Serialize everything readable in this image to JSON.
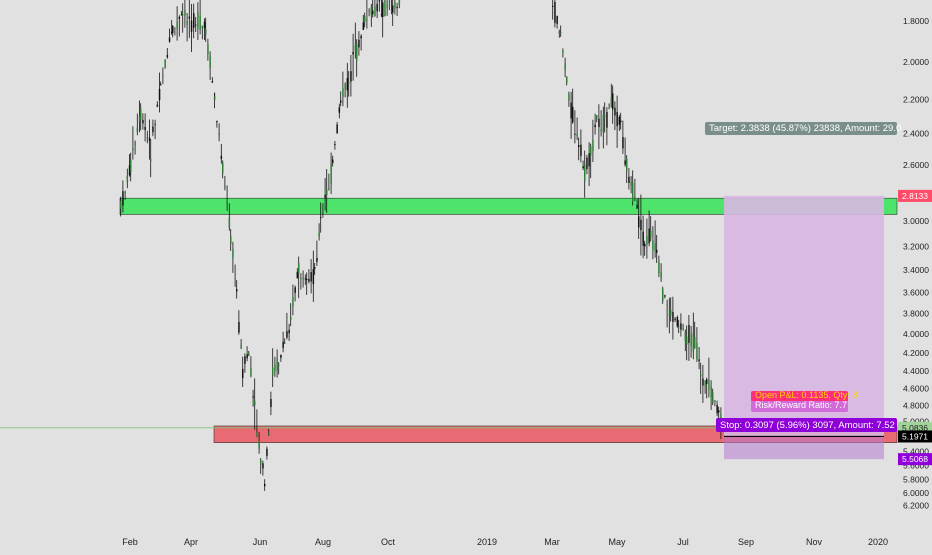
{
  "chart_data": {
    "type": "candlestick",
    "scale": "log",
    "y_axis_inverted": true,
    "grid": false,
    "x_tick_labels": [
      "Feb",
      "Apr",
      "Jun",
      "Aug",
      "Oct",
      "2019",
      "Mar",
      "May",
      "Jul",
      "Sep",
      "Nov",
      "2020"
    ],
    "y_tick_labels": [
      "1.8000",
      "2.0000",
      "2.2000",
      "2.4000",
      "2.6000",
      "2.8000",
      "3.0000",
      "3.2000",
      "3.4000",
      "3.6000",
      "3.8000",
      "4.0000",
      "4.2000",
      "4.4000",
      "4.6000",
      "4.8000",
      "5.0000",
      "5.2000",
      "5.4000",
      "5.6000",
      "5.8000",
      "6.0000",
      "6.2000"
    ],
    "y_range": [
      1.72,
      6.35
    ],
    "series_price_samples": [
      {
        "date": "Jan 2018",
        "price": 2.8
      },
      {
        "date": "Feb 2018",
        "price": 2.5
      },
      {
        "date": "Mar 2018",
        "price": 1.9
      },
      {
        "date": "Apr 2018",
        "price": 1.8
      },
      {
        "date": "Apr 2018 (late)",
        "price": 2.6
      },
      {
        "date": "May 2018",
        "price": 4.5
      },
      {
        "date": "early Jun 2018",
        "price": 5.9
      },
      {
        "date": "Jun 2018",
        "price": 4.2
      },
      {
        "date": "Jul 2018",
        "price": 3.5
      },
      {
        "date": "Aug 2018",
        "price": 2.7
      },
      {
        "date": "Sep 2018",
        "price": 2.0
      },
      {
        "date": "Oct 2018",
        "price": 1.8
      },
      {
        "date": "Mar 2019",
        "price": 2.1
      },
      {
        "date": "Apr 2019",
        "price": 2.4
      },
      {
        "date": "May 2019",
        "price": 2.7
      },
      {
        "date": "Jun 2019",
        "price": 3.6
      },
      {
        "date": "Jul 2019",
        "price": 4.7
      },
      {
        "date": "Aug 2019",
        "price": 5.1
      }
    ],
    "zones": [
      {
        "name": "resistance-zone",
        "color": "#4ee36a",
        "from_price": 2.83,
        "to_price": 2.95
      },
      {
        "name": "support-zone",
        "color": "#e86a72",
        "from_price": 5.06,
        "to_price": 5.28
      }
    ],
    "position": {
      "target_label": "Target: 2.3838 (45.87%) 23838, Amount: 29.0",
      "stop_label": "Stop: 0.3097 (5.96%) 3097, Amount: 7.52",
      "open_pnl_label": "Open P&L: 0.1135, Qty: 8",
      "risk_reward_label": "Risk/Reward Ratio: 7.7",
      "target_color": "#d8b6e2",
      "stop_color": "#b77bd0"
    },
    "price_markers": [
      {
        "value": "2.8133",
        "bg": "#ff4c6a",
        "fg": "#ffffff"
      },
      {
        "value": "5.0836",
        "bg": "#a2d49a",
        "fg": "#1a1a1a"
      },
      {
        "value": "5.1971",
        "bg": "#000000",
        "fg": "#ffffff"
      },
      {
        "value": "5.5068",
        "bg": "#8f00d9",
        "fg": "#ffffff"
      }
    ],
    "colors": {
      "up": "#2e7d32",
      "down": "#111111",
      "background": "#e1e1e1"
    }
  }
}
